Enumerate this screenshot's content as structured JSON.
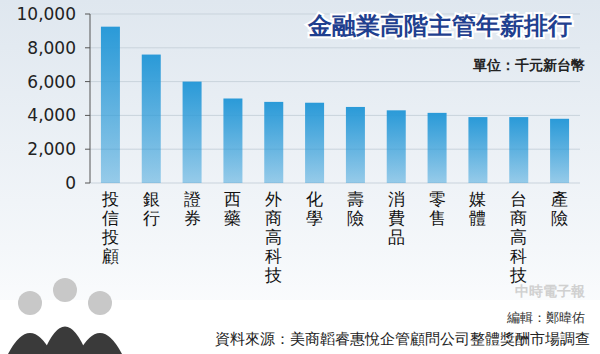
{
  "chart_data": {
    "type": "bar",
    "title": "金融業高階主管年薪排行",
    "subtitle": "單位：千元新台幣",
    "categories": [
      "投信投顧",
      "銀行",
      "證券",
      "西藥",
      "外商高科技",
      "化學",
      "壽險",
      "消費品",
      "零售",
      "媒體",
      "台商高科技",
      "產險"
    ],
    "values": [
      9250,
      7600,
      6000,
      5000,
      4800,
      4750,
      4500,
      4300,
      4150,
      3900,
      3900,
      3800
    ],
    "color": "#2a9ad8",
    "ylim": [
      0,
      10000
    ],
    "yticks": [
      0,
      {
        "value": 2000,
        "label": "2,000"
      },
      {
        "value": 4000,
        "label": "4,000"
      },
      {
        "value": 6000,
        "label": "6,000"
      },
      {
        "value": 8000,
        "label": "8,000"
      },
      {
        "value": 10000,
        "label": "10,000"
      }
    ],
    "grid": true,
    "credit": "編輯：鄭暐佑",
    "source": "資料來源：美商韜睿惠悅企管顧問公司整體獎酬市場調查",
    "watermark": "中時電子報"
  }
}
